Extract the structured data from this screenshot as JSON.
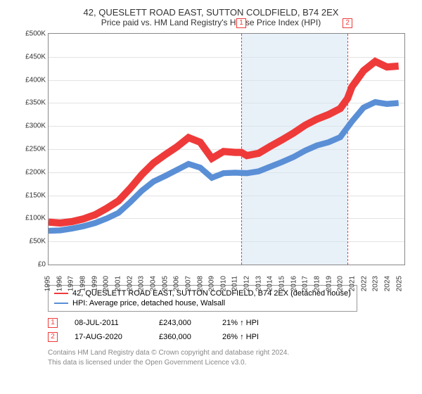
{
  "title": "42, QUESLETT ROAD EAST, SUTTON COLDFIELD, B74 2EX",
  "subtitle": "Price paid vs. HM Land Registry's House Price Index (HPI)",
  "chart": {
    "type": "line",
    "ylim": [
      0,
      500000
    ],
    "ytick_step": 50000,
    "ytick_prefix": "£",
    "ytick_suffix": "K",
    "x_start": 1995,
    "x_end": 2025.5,
    "xticks": [
      1995,
      1996,
      1997,
      1998,
      1999,
      2000,
      2001,
      2002,
      2003,
      2004,
      2005,
      2006,
      2007,
      2008,
      2009,
      2010,
      2011,
      2012,
      2013,
      2014,
      2015,
      2016,
      2017,
      2018,
      2019,
      2020,
      2021,
      2022,
      2023,
      2024,
      2025
    ],
    "grid_color": "#e3e3e3",
    "border_color": "#888888",
    "background_color": "#ffffff",
    "shade_color": "#d6e3f2",
    "shade_start": 2011.52,
    "shade_end": 2020.63,
    "markers": [
      {
        "n": "1",
        "x": 2011.52,
        "y": 243000,
        "dot_color": "#ef3a3a"
      },
      {
        "n": "2",
        "x": 2020.63,
        "y": 360000,
        "dot_color": "#ef3a3a"
      }
    ],
    "series": [
      {
        "name": "42, QUESLETT ROAD EAST, SUTTON COLDFIELD, B74 2EX (detached house)",
        "color": "#ef3a3a",
        "width": 1.7,
        "data": [
          [
            1995,
            92000
          ],
          [
            1996,
            90000
          ],
          [
            1997,
            93000
          ],
          [
            1998,
            99000
          ],
          [
            1999,
            108000
          ],
          [
            2000,
            122000
          ],
          [
            2001,
            138000
          ],
          [
            2002,
            165000
          ],
          [
            2003,
            195000
          ],
          [
            2004,
            220000
          ],
          [
            2005,
            238000
          ],
          [
            2006,
            255000
          ],
          [
            2007,
            275000
          ],
          [
            2008,
            265000
          ],
          [
            2009,
            230000
          ],
          [
            2010,
            245000
          ],
          [
            2011,
            243000
          ],
          [
            2011.52,
            243000
          ],
          [
            2012,
            236000
          ],
          [
            2013,
            241000
          ],
          [
            2014,
            256000
          ],
          [
            2015,
            270000
          ],
          [
            2016,
            285000
          ],
          [
            2017,
            302000
          ],
          [
            2018,
            315000
          ],
          [
            2019,
            325000
          ],
          [
            2020,
            338000
          ],
          [
            2020.63,
            360000
          ],
          [
            2021,
            385000
          ],
          [
            2022,
            420000
          ],
          [
            2023,
            440000
          ],
          [
            2024,
            428000
          ],
          [
            2025,
            430000
          ]
        ]
      },
      {
        "name": "HPI: Average price, detached house, Walsall",
        "color": "#5a8fd6",
        "width": 1.4,
        "data": [
          [
            1995,
            73000
          ],
          [
            1996,
            74000
          ],
          [
            1997,
            78000
          ],
          [
            1998,
            83000
          ],
          [
            1999,
            90000
          ],
          [
            2000,
            100000
          ],
          [
            2001,
            112000
          ],
          [
            2002,
            135000
          ],
          [
            2003,
            160000
          ],
          [
            2004,
            180000
          ],
          [
            2005,
            192000
          ],
          [
            2006,
            205000
          ],
          [
            2007,
            218000
          ],
          [
            2008,
            210000
          ],
          [
            2009,
            188000
          ],
          [
            2010,
            198000
          ],
          [
            2011,
            199000
          ],
          [
            2012,
            198000
          ],
          [
            2013,
            202000
          ],
          [
            2014,
            212000
          ],
          [
            2015,
            222000
          ],
          [
            2016,
            233000
          ],
          [
            2017,
            247000
          ],
          [
            2018,
            258000
          ],
          [
            2019,
            265000
          ],
          [
            2020,
            276000
          ],
          [
            2021,
            310000
          ],
          [
            2022,
            340000
          ],
          [
            2023,
            352000
          ],
          [
            2024,
            348000
          ],
          [
            2025,
            350000
          ]
        ]
      }
    ]
  },
  "legend": {
    "items": [
      {
        "color": "#ef3a3a",
        "label": "42, QUESLETT ROAD EAST, SUTTON COLDFIELD, B74 2EX (detached house)"
      },
      {
        "color": "#5a8fd6",
        "label": "HPI: Average price, detached house, Walsall"
      }
    ]
  },
  "sales": [
    {
      "n": "1",
      "date": "08-JUL-2011",
      "price": "£243,000",
      "delta": "21% ↑ HPI"
    },
    {
      "n": "2",
      "date": "17-AUG-2020",
      "price": "£360,000",
      "delta": "26% ↑ HPI"
    }
  ],
  "footer_line1": "Contains HM Land Registry data © Crown copyright and database right 2024.",
  "footer_line2": "This data is licensed under the Open Government Licence v3.0."
}
